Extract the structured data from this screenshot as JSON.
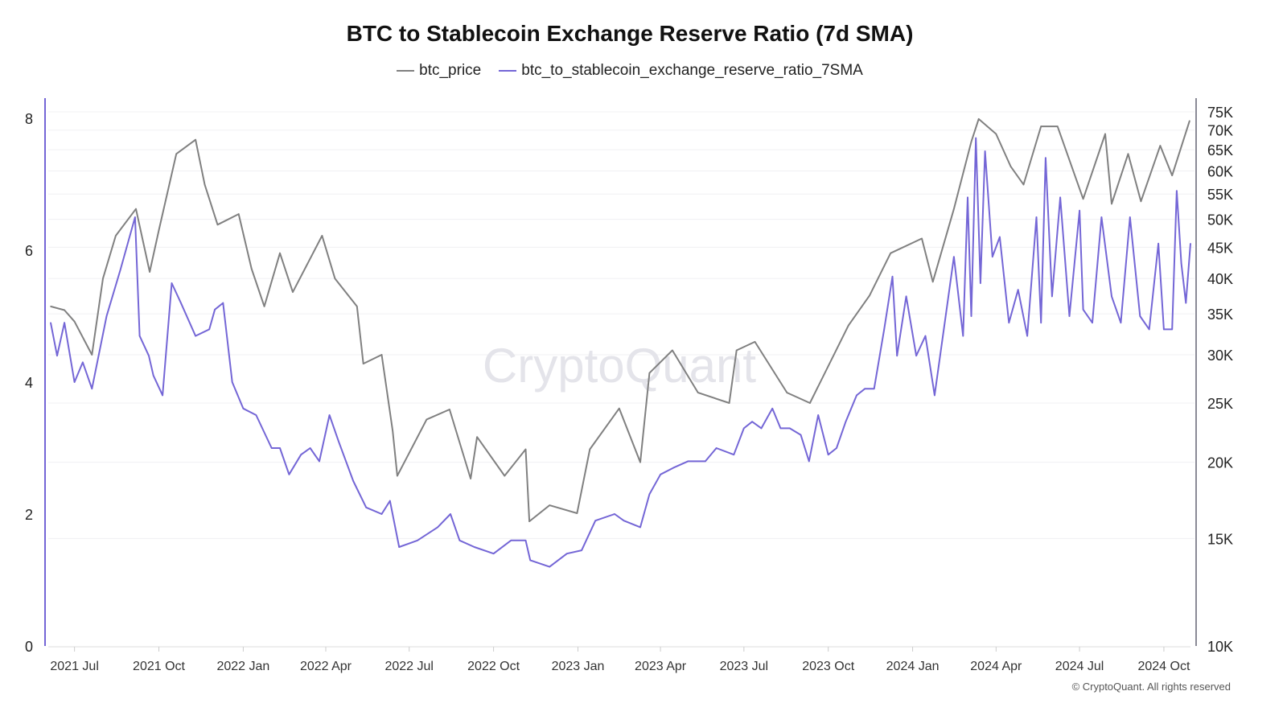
{
  "chart_data": {
    "type": "line",
    "title": "BTC to Stablecoin Exchange Reserve Ratio (7d SMA)",
    "watermark": "CryptoQuant",
    "copyright": "© CryptoQuant. All rights reserved",
    "grid": true,
    "legend_position": "top-center",
    "x_range": [
      "2021-06-05",
      "2024-10-30"
    ],
    "x_ticks": [
      "2021 Jul",
      "2021 Oct",
      "2022 Jan",
      "2022 Apr",
      "2022 Jul",
      "2022 Oct",
      "2023 Jan",
      "2023 Apr",
      "2023 Jul",
      "2023 Oct",
      "2024 Jan",
      "2024 Apr",
      "2024 Jul",
      "2024 Oct"
    ],
    "x_tick_dates": [
      "2021-07-01",
      "2021-10-01",
      "2022-01-01",
      "2022-04-01",
      "2022-07-01",
      "2022-10-01",
      "2023-01-01",
      "2023-04-01",
      "2023-07-01",
      "2023-10-01",
      "2024-01-01",
      "2024-04-01",
      "2024-07-01",
      "2024-10-01"
    ],
    "y_left": {
      "range": [
        0,
        8
      ],
      "ticks": [
        "0",
        "2",
        "4",
        "6",
        "8"
      ],
      "tick_values": [
        0,
        2,
        4,
        6,
        8
      ]
    },
    "y_right": {
      "scale": "log",
      "range": [
        10000,
        75000
      ],
      "ticks": [
        "10K",
        "15K",
        "20K",
        "25K",
        "30K",
        "35K",
        "40K",
        "45K",
        "50K",
        "55K",
        "60K",
        "65K",
        "70K",
        "75K"
      ],
      "tick_values": [
        10000,
        15000,
        20000,
        25000,
        30000,
        35000,
        40000,
        45000,
        50000,
        55000,
        60000,
        65000,
        70000,
        75000
      ]
    },
    "series": [
      {
        "name": "btc_price",
        "axis": "right",
        "color": "#808080",
        "points": [
          [
            "2021-06-05",
            36000
          ],
          [
            "2021-06-20",
            35500
          ],
          [
            "2021-07-01",
            34000
          ],
          [
            "2021-07-20",
            30000
          ],
          [
            "2021-08-01",
            40000
          ],
          [
            "2021-08-15",
            47000
          ],
          [
            "2021-09-06",
            52000
          ],
          [
            "2021-09-21",
            41000
          ],
          [
            "2021-10-01",
            48000
          ],
          [
            "2021-10-20",
            64000
          ],
          [
            "2021-11-10",
            67500
          ],
          [
            "2021-11-20",
            57000
          ],
          [
            "2021-12-04",
            49000
          ],
          [
            "2021-12-27",
            51000
          ],
          [
            "2022-01-10",
            41500
          ],
          [
            "2022-01-24",
            36000
          ],
          [
            "2022-02-10",
            44000
          ],
          [
            "2022-02-24",
            38000
          ],
          [
            "2022-03-28",
            47000
          ],
          [
            "2022-04-11",
            40000
          ],
          [
            "2022-05-05",
            36000
          ],
          [
            "2022-05-12",
            29000
          ],
          [
            "2022-06-01",
            30000
          ],
          [
            "2022-06-13",
            22500
          ],
          [
            "2022-06-18",
            19000
          ],
          [
            "2022-07-20",
            23500
          ],
          [
            "2022-08-14",
            24400
          ],
          [
            "2022-09-06",
            18800
          ],
          [
            "2022-09-13",
            22000
          ],
          [
            "2022-10-13",
            19000
          ],
          [
            "2022-11-05",
            21000
          ],
          [
            "2022-11-09",
            16000
          ],
          [
            "2022-12-01",
            17000
          ],
          [
            "2022-12-31",
            16500
          ],
          [
            "2023-01-14",
            21000
          ],
          [
            "2023-02-15",
            24500
          ],
          [
            "2023-03-10",
            20000
          ],
          [
            "2023-03-20",
            28000
          ],
          [
            "2023-04-14",
            30500
          ],
          [
            "2023-05-12",
            26000
          ],
          [
            "2023-06-15",
            25000
          ],
          [
            "2023-06-23",
            30500
          ],
          [
            "2023-07-13",
            31500
          ],
          [
            "2023-08-17",
            26000
          ],
          [
            "2023-09-11",
            25000
          ],
          [
            "2023-10-23",
            33500
          ],
          [
            "2023-11-15",
            37500
          ],
          [
            "2023-12-08",
            44000
          ],
          [
            "2024-01-11",
            46500
          ],
          [
            "2024-01-23",
            39500
          ],
          [
            "2024-02-15",
            52000
          ],
          [
            "2024-03-05",
            67000
          ],
          [
            "2024-03-13",
            73000
          ],
          [
            "2024-04-01",
            69000
          ],
          [
            "2024-04-17",
            61000
          ],
          [
            "2024-05-01",
            57000
          ],
          [
            "2024-05-20",
            71000
          ],
          [
            "2024-06-07",
            71000
          ],
          [
            "2024-07-05",
            54000
          ],
          [
            "2024-07-29",
            69000
          ],
          [
            "2024-08-05",
            53000
          ],
          [
            "2024-08-23",
            64000
          ],
          [
            "2024-09-06",
            53500
          ],
          [
            "2024-09-27",
            66000
          ],
          [
            "2024-10-10",
            59000
          ],
          [
            "2024-10-29",
            72500
          ]
        ]
      },
      {
        "name": "btc_to_stablecoin_exchange_reserve_ratio_7SMA",
        "axis": "left",
        "color": "#7466d6",
        "points": [
          [
            "2021-06-05",
            4.9
          ],
          [
            "2021-06-12",
            4.4
          ],
          [
            "2021-06-20",
            4.9
          ],
          [
            "2021-07-01",
            4.0
          ],
          [
            "2021-07-10",
            4.3
          ],
          [
            "2021-07-20",
            3.9
          ],
          [
            "2021-08-05",
            5.0
          ],
          [
            "2021-08-20",
            5.7
          ],
          [
            "2021-09-05",
            6.5
          ],
          [
            "2021-09-10",
            4.7
          ],
          [
            "2021-09-20",
            4.4
          ],
          [
            "2021-09-25",
            4.1
          ],
          [
            "2021-10-05",
            3.8
          ],
          [
            "2021-10-15",
            5.5
          ],
          [
            "2021-10-25",
            5.2
          ],
          [
            "2021-11-10",
            4.7
          ],
          [
            "2021-11-25",
            4.8
          ],
          [
            "2021-12-01",
            5.1
          ],
          [
            "2021-12-10",
            5.2
          ],
          [
            "2021-12-20",
            4.0
          ],
          [
            "2022-01-01",
            3.6
          ],
          [
            "2022-01-15",
            3.5
          ],
          [
            "2022-02-01",
            3.0
          ],
          [
            "2022-02-10",
            3.0
          ],
          [
            "2022-02-20",
            2.6
          ],
          [
            "2022-03-05",
            2.9
          ],
          [
            "2022-03-15",
            3.0
          ],
          [
            "2022-03-25",
            2.8
          ],
          [
            "2022-04-05",
            3.5
          ],
          [
            "2022-04-15",
            3.1
          ],
          [
            "2022-05-01",
            2.5
          ],
          [
            "2022-05-15",
            2.1
          ],
          [
            "2022-06-01",
            2.0
          ],
          [
            "2022-06-10",
            2.2
          ],
          [
            "2022-06-20",
            1.5
          ],
          [
            "2022-07-10",
            1.6
          ],
          [
            "2022-08-01",
            1.8
          ],
          [
            "2022-08-15",
            2.0
          ],
          [
            "2022-08-25",
            1.6
          ],
          [
            "2022-09-10",
            1.5
          ],
          [
            "2022-10-01",
            1.4
          ],
          [
            "2022-10-20",
            1.6
          ],
          [
            "2022-11-05",
            1.6
          ],
          [
            "2022-11-10",
            1.3
          ],
          [
            "2022-12-01",
            1.2
          ],
          [
            "2022-12-20",
            1.4
          ],
          [
            "2023-01-05",
            1.45
          ],
          [
            "2023-01-20",
            1.9
          ],
          [
            "2023-02-10",
            2.0
          ],
          [
            "2023-02-20",
            1.9
          ],
          [
            "2023-03-10",
            1.8
          ],
          [
            "2023-03-20",
            2.3
          ],
          [
            "2023-04-01",
            2.6
          ],
          [
            "2023-04-15",
            2.7
          ],
          [
            "2023-05-01",
            2.8
          ],
          [
            "2023-05-20",
            2.8
          ],
          [
            "2023-06-01",
            3.0
          ],
          [
            "2023-06-20",
            2.9
          ],
          [
            "2023-07-01",
            3.3
          ],
          [
            "2023-07-10",
            3.4
          ],
          [
            "2023-07-20",
            3.3
          ],
          [
            "2023-08-01",
            3.6
          ],
          [
            "2023-08-10",
            3.3
          ],
          [
            "2023-08-20",
            3.3
          ],
          [
            "2023-09-01",
            3.2
          ],
          [
            "2023-09-10",
            2.8
          ],
          [
            "2023-09-20",
            3.5
          ],
          [
            "2023-10-01",
            2.9
          ],
          [
            "2023-10-10",
            3.0
          ],
          [
            "2023-10-20",
            3.4
          ],
          [
            "2023-11-01",
            3.8
          ],
          [
            "2023-11-10",
            3.9
          ],
          [
            "2023-11-20",
            3.9
          ],
          [
            "2023-12-01",
            4.8
          ],
          [
            "2023-12-10",
            5.6
          ],
          [
            "2023-12-15",
            4.4
          ],
          [
            "2023-12-25",
            5.3
          ],
          [
            "2024-01-05",
            4.4
          ],
          [
            "2024-01-15",
            4.7
          ],
          [
            "2024-01-25",
            3.8
          ],
          [
            "2024-02-05",
            4.9
          ],
          [
            "2024-02-15",
            5.9
          ],
          [
            "2024-02-25",
            4.7
          ],
          [
            "2024-03-01",
            6.8
          ],
          [
            "2024-03-05",
            5.0
          ],
          [
            "2024-03-10",
            7.7
          ],
          [
            "2024-03-15",
            5.5
          ],
          [
            "2024-03-20",
            7.5
          ],
          [
            "2024-03-28",
            5.9
          ],
          [
            "2024-04-05",
            6.2
          ],
          [
            "2024-04-15",
            4.9
          ],
          [
            "2024-04-25",
            5.4
          ],
          [
            "2024-05-05",
            4.7
          ],
          [
            "2024-05-15",
            6.5
          ],
          [
            "2024-05-20",
            4.9
          ],
          [
            "2024-05-25",
            7.4
          ],
          [
            "2024-06-01",
            5.3
          ],
          [
            "2024-06-10",
            6.8
          ],
          [
            "2024-06-20",
            5.0
          ],
          [
            "2024-07-01",
            6.6
          ],
          [
            "2024-07-05",
            5.1
          ],
          [
            "2024-07-15",
            4.9
          ],
          [
            "2024-07-25",
            6.5
          ],
          [
            "2024-08-05",
            5.3
          ],
          [
            "2024-08-15",
            4.9
          ],
          [
            "2024-08-25",
            6.5
          ],
          [
            "2024-09-05",
            5.0
          ],
          [
            "2024-09-15",
            4.8
          ],
          [
            "2024-09-25",
            6.1
          ],
          [
            "2024-10-01",
            4.8
          ],
          [
            "2024-10-10",
            4.8
          ],
          [
            "2024-10-15",
            6.9
          ],
          [
            "2024-10-20",
            5.8
          ],
          [
            "2024-10-25",
            5.2
          ],
          [
            "2024-10-30",
            6.1
          ]
        ]
      }
    ]
  }
}
